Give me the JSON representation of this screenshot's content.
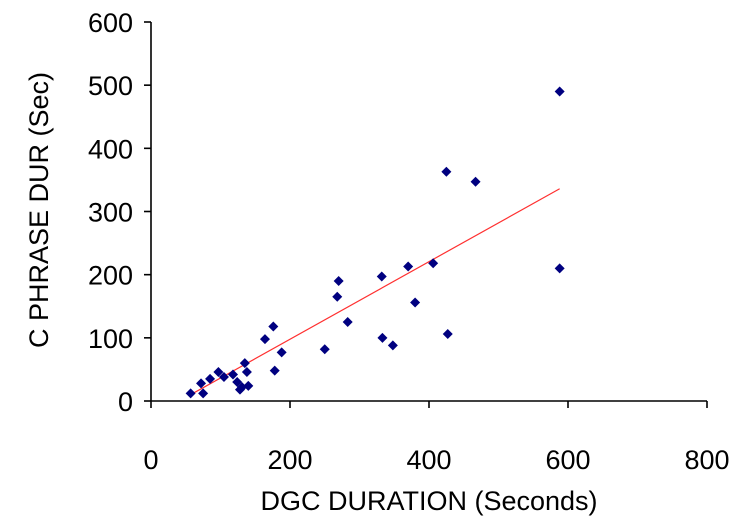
{
  "chart_data": {
    "type": "scatter",
    "title": "",
    "xlabel": "DGC DURATION (Seconds)",
    "ylabel": "C PHRASE DUR (Sec)",
    "xlim": [
      0,
      800
    ],
    "ylim": [
      0,
      600
    ],
    "xticks": [
      0,
      200,
      400,
      600,
      800
    ],
    "yticks": [
      0,
      100,
      200,
      300,
      400,
      500,
      600
    ],
    "x_tick_labels": [
      "0",
      "200",
      "400",
      "600",
      "800"
    ],
    "y_tick_labels": [
      "0",
      "100",
      "200",
      "300",
      "400",
      "500",
      "600"
    ],
    "grid": false,
    "legend": "none",
    "point_color": "#000080",
    "trendline_color": "#ff3030",
    "series": [
      {
        "points": [
          [
            57,
            12
          ],
          [
            72,
            28
          ],
          [
            75,
            12
          ],
          [
            85,
            35
          ],
          [
            97,
            46
          ],
          [
            105,
            38
          ],
          [
            118,
            42
          ],
          [
            124,
            30
          ],
          [
            128,
            18
          ],
          [
            131,
            22
          ],
          [
            135,
            60
          ],
          [
            138,
            46
          ],
          [
            140,
            24
          ],
          [
            164,
            98
          ],
          [
            176,
            118
          ],
          [
            178,
            48
          ],
          [
            188,
            77
          ],
          [
            250,
            82
          ],
          [
            268,
            165
          ],
          [
            270,
            190
          ],
          [
            283,
            125
          ],
          [
            332,
            197
          ],
          [
            333,
            100
          ],
          [
            348,
            88
          ],
          [
            370,
            213
          ],
          [
            380,
            156
          ],
          [
            406,
            218
          ],
          [
            425,
            363
          ],
          [
            427,
            106
          ],
          [
            467,
            347
          ],
          [
            588,
            490
          ],
          [
            588,
            210
          ]
        ]
      }
    ],
    "trendline": {
      "x": [
        57,
        588
      ],
      "y": [
        10,
        336
      ]
    }
  }
}
